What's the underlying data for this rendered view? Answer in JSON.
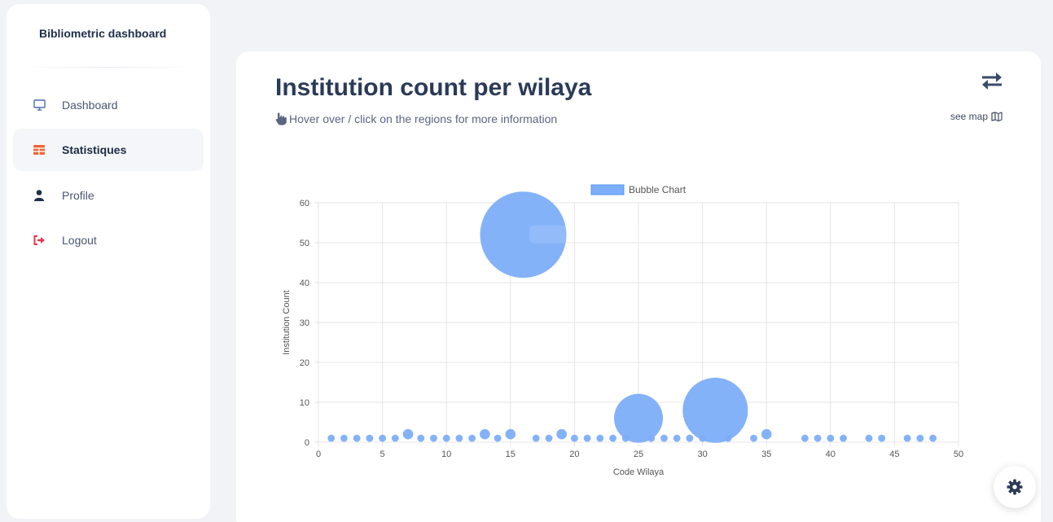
{
  "brand": {
    "title": "Bibliometric dashboard"
  },
  "sidebar": {
    "items": [
      {
        "label": "Dashboard",
        "icon": "monitor-icon",
        "active": false
      },
      {
        "label": "Statistiques",
        "icon": "table-icon",
        "active": true
      },
      {
        "label": "Profile",
        "icon": "user-icon",
        "active": false
      },
      {
        "label": "Logout",
        "icon": "logout-icon",
        "active": false
      }
    ]
  },
  "main": {
    "title": "Institution count per wilaya",
    "hint": "Hover over / click on the regions for more information",
    "see_map": "see map"
  },
  "colors": {
    "bubble": "#7daef9",
    "accent_orange": "#f0643a",
    "accent_red": "#e8354f",
    "text_dark": "#2b3a57"
  },
  "chart_data": {
    "type": "bubble",
    "legend": [
      "Bubble Chart"
    ],
    "legend_position": "top",
    "xlabel": "Code Wilaya",
    "ylabel": "Institution Count",
    "xlim": [
      0,
      50
    ],
    "ylim": [
      0,
      60
    ],
    "xticks": [
      0,
      5,
      10,
      15,
      20,
      25,
      30,
      35,
      40,
      45,
      50
    ],
    "yticks": [
      0,
      10,
      20,
      30,
      40,
      50,
      60
    ],
    "grid": true,
    "points": [
      {
        "x": 1,
        "y": 1
      },
      {
        "x": 2,
        "y": 1
      },
      {
        "x": 3,
        "y": 1
      },
      {
        "x": 4,
        "y": 1
      },
      {
        "x": 5,
        "y": 1
      },
      {
        "x": 6,
        "y": 1
      },
      {
        "x": 7,
        "y": 2
      },
      {
        "x": 8,
        "y": 1
      },
      {
        "x": 9,
        "y": 1
      },
      {
        "x": 10,
        "y": 1
      },
      {
        "x": 11,
        "y": 1
      },
      {
        "x": 12,
        "y": 1
      },
      {
        "x": 13,
        "y": 2
      },
      {
        "x": 14,
        "y": 1
      },
      {
        "x": 15,
        "y": 2
      },
      {
        "x": 16,
        "y": 52
      },
      {
        "x": 17,
        "y": 1
      },
      {
        "x": 18,
        "y": 1
      },
      {
        "x": 19,
        "y": 2
      },
      {
        "x": 20,
        "y": 1
      },
      {
        "x": 21,
        "y": 1
      },
      {
        "x": 22,
        "y": 1
      },
      {
        "x": 23,
        "y": 1
      },
      {
        "x": 24,
        "y": 1
      },
      {
        "x": 25,
        "y": 6
      },
      {
        "x": 26,
        "y": 1
      },
      {
        "x": 27,
        "y": 1
      },
      {
        "x": 28,
        "y": 1
      },
      {
        "x": 29,
        "y": 1
      },
      {
        "x": 30,
        "y": 1
      },
      {
        "x": 31,
        "y": 8
      },
      {
        "x": 32,
        "y": 1
      },
      {
        "x": 34,
        "y": 1
      },
      {
        "x": 35,
        "y": 2
      },
      {
        "x": 38,
        "y": 1
      },
      {
        "x": 39,
        "y": 1
      },
      {
        "x": 40,
        "y": 1
      },
      {
        "x": 41,
        "y": 1
      },
      {
        "x": 43,
        "y": 1
      },
      {
        "x": 44,
        "y": 1
      },
      {
        "x": 46,
        "y": 1
      },
      {
        "x": 47,
        "y": 1
      },
      {
        "x": 48,
        "y": 1
      }
    ]
  }
}
